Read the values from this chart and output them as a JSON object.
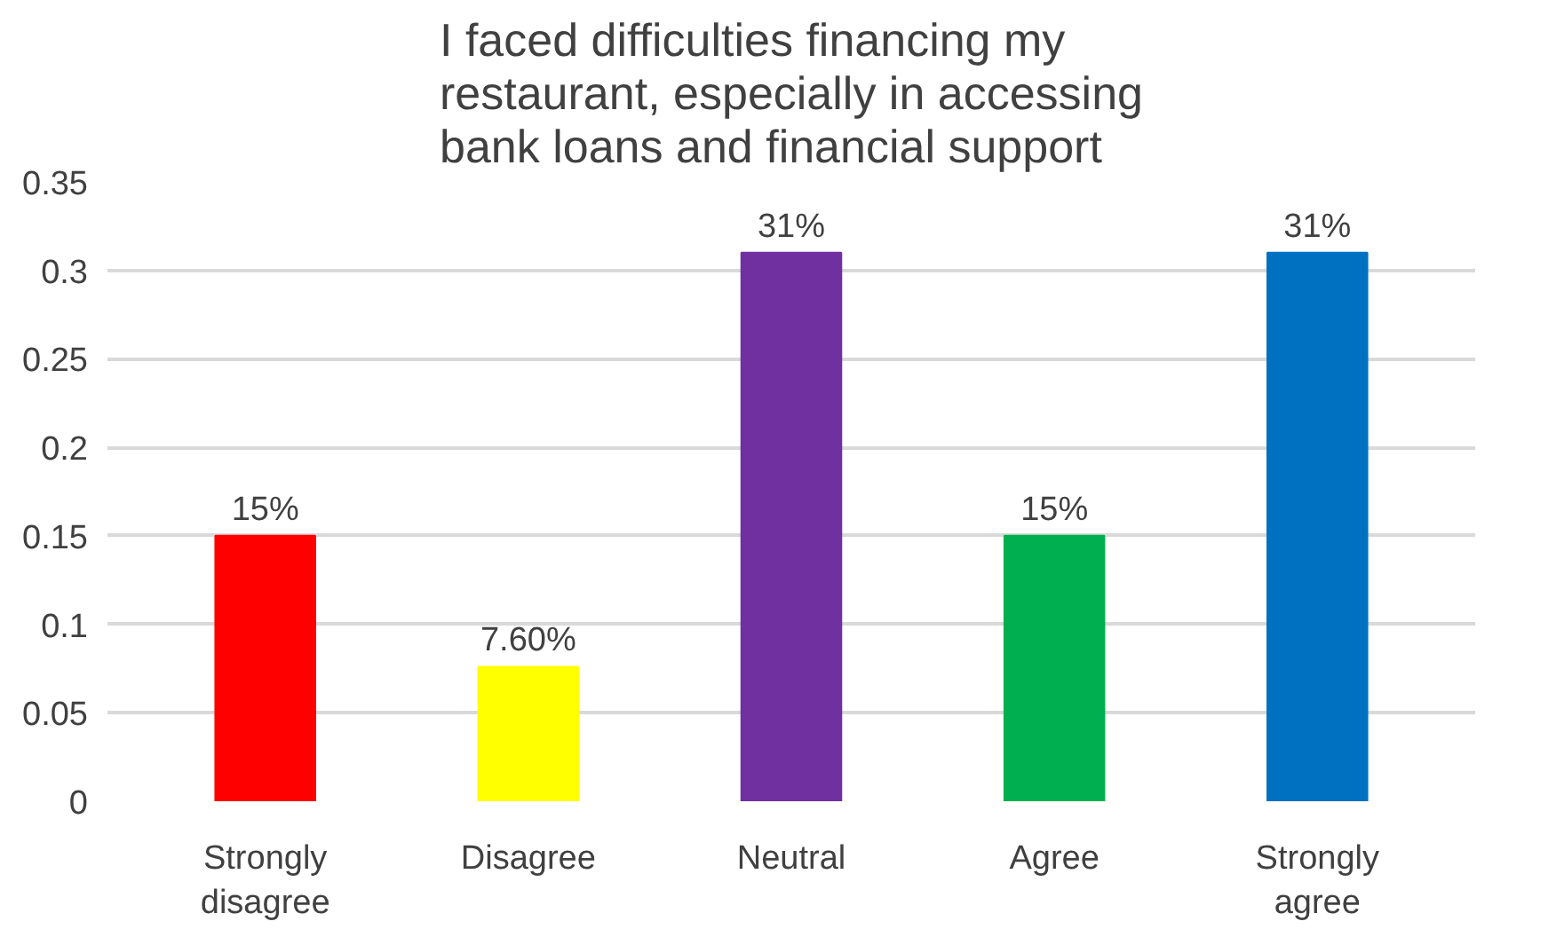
{
  "chart_data": {
    "type": "bar",
    "title": "I faced difficulties financing my restaurant, especially in accessing bank loans and financial support",
    "categories": [
      "Strongly disagree",
      "Disagree",
      "Neutral",
      "Agree",
      "Strongly agree"
    ],
    "values": [
      0.15,
      0.076,
      0.31,
      0.15,
      0.31
    ],
    "value_labels": [
      "15%",
      "7.60%",
      "31%",
      "15%",
      "31%"
    ],
    "colors": [
      "#ff0000",
      "#ffff00",
      "#7030a0",
      "#00b050",
      "#0070c0"
    ],
    "ylim": [
      0,
      0.35
    ],
    "yticks": [
      0,
      0.05,
      0.1,
      0.15,
      0.2,
      0.25,
      0.3,
      0.35
    ],
    "grid": "y"
  }
}
